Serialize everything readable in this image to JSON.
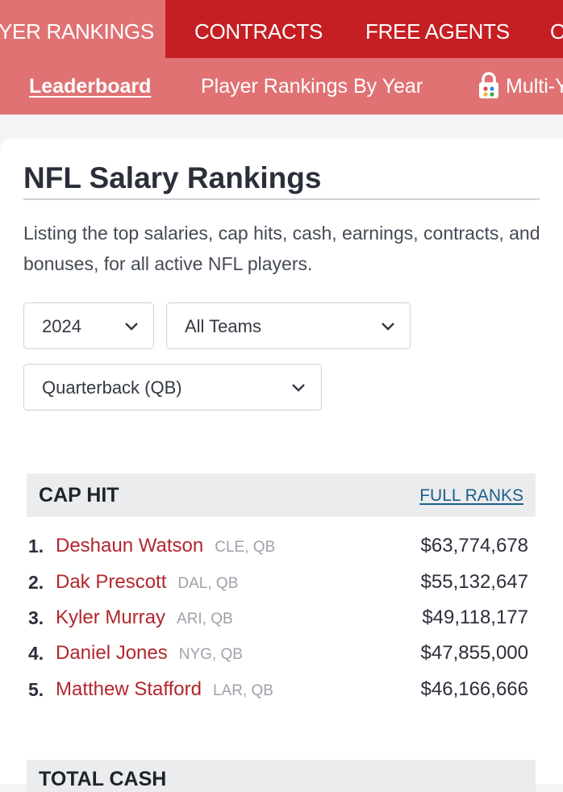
{
  "topnav": {
    "tabs": [
      {
        "label": "YER RANKINGS"
      },
      {
        "label": "CONTRACTS"
      },
      {
        "label": "FREE AGENTS"
      },
      {
        "label": "O"
      }
    ]
  },
  "subnav": {
    "items": [
      {
        "label": "Leaderboard"
      },
      {
        "label": "Player Rankings By Year"
      },
      {
        "label": "Multi-Y"
      }
    ]
  },
  "page": {
    "title": "NFL Salary Rankings",
    "intro": "Listing the top salaries, cap hits, cash, earnings, contracts, and bonuses, for all active NFL players."
  },
  "filters": {
    "year": "2024",
    "team": "All Teams",
    "position": "Quarterback (QB)"
  },
  "cap_hit": {
    "title": "CAP HIT",
    "link": "FULL RANKS",
    "rows": [
      {
        "rank": "1.",
        "name": "Deshaun Watson",
        "team": "CLE, QB",
        "amount": "$63,774,678"
      },
      {
        "rank": "2.",
        "name": "Dak Prescott",
        "team": "DAL, QB",
        "amount": "$55,132,647"
      },
      {
        "rank": "3.",
        "name": "Kyler Murray",
        "team": "ARI, QB",
        "amount": "$49,118,177"
      },
      {
        "rank": "4.",
        "name": "Daniel Jones",
        "team": "NYG, QB",
        "amount": "$47,855,000"
      },
      {
        "rank": "5.",
        "name": "Matthew Stafford",
        "team": "LAR, QB",
        "amount": "$46,166,666"
      }
    ]
  },
  "next_section": {
    "title": "TOTAL CASH"
  },
  "colors": {
    "nav_red": "#c51f24",
    "nav_pink": "#e07274",
    "player_link": "#b3262c",
    "rank_link": "#1d5f8a"
  }
}
